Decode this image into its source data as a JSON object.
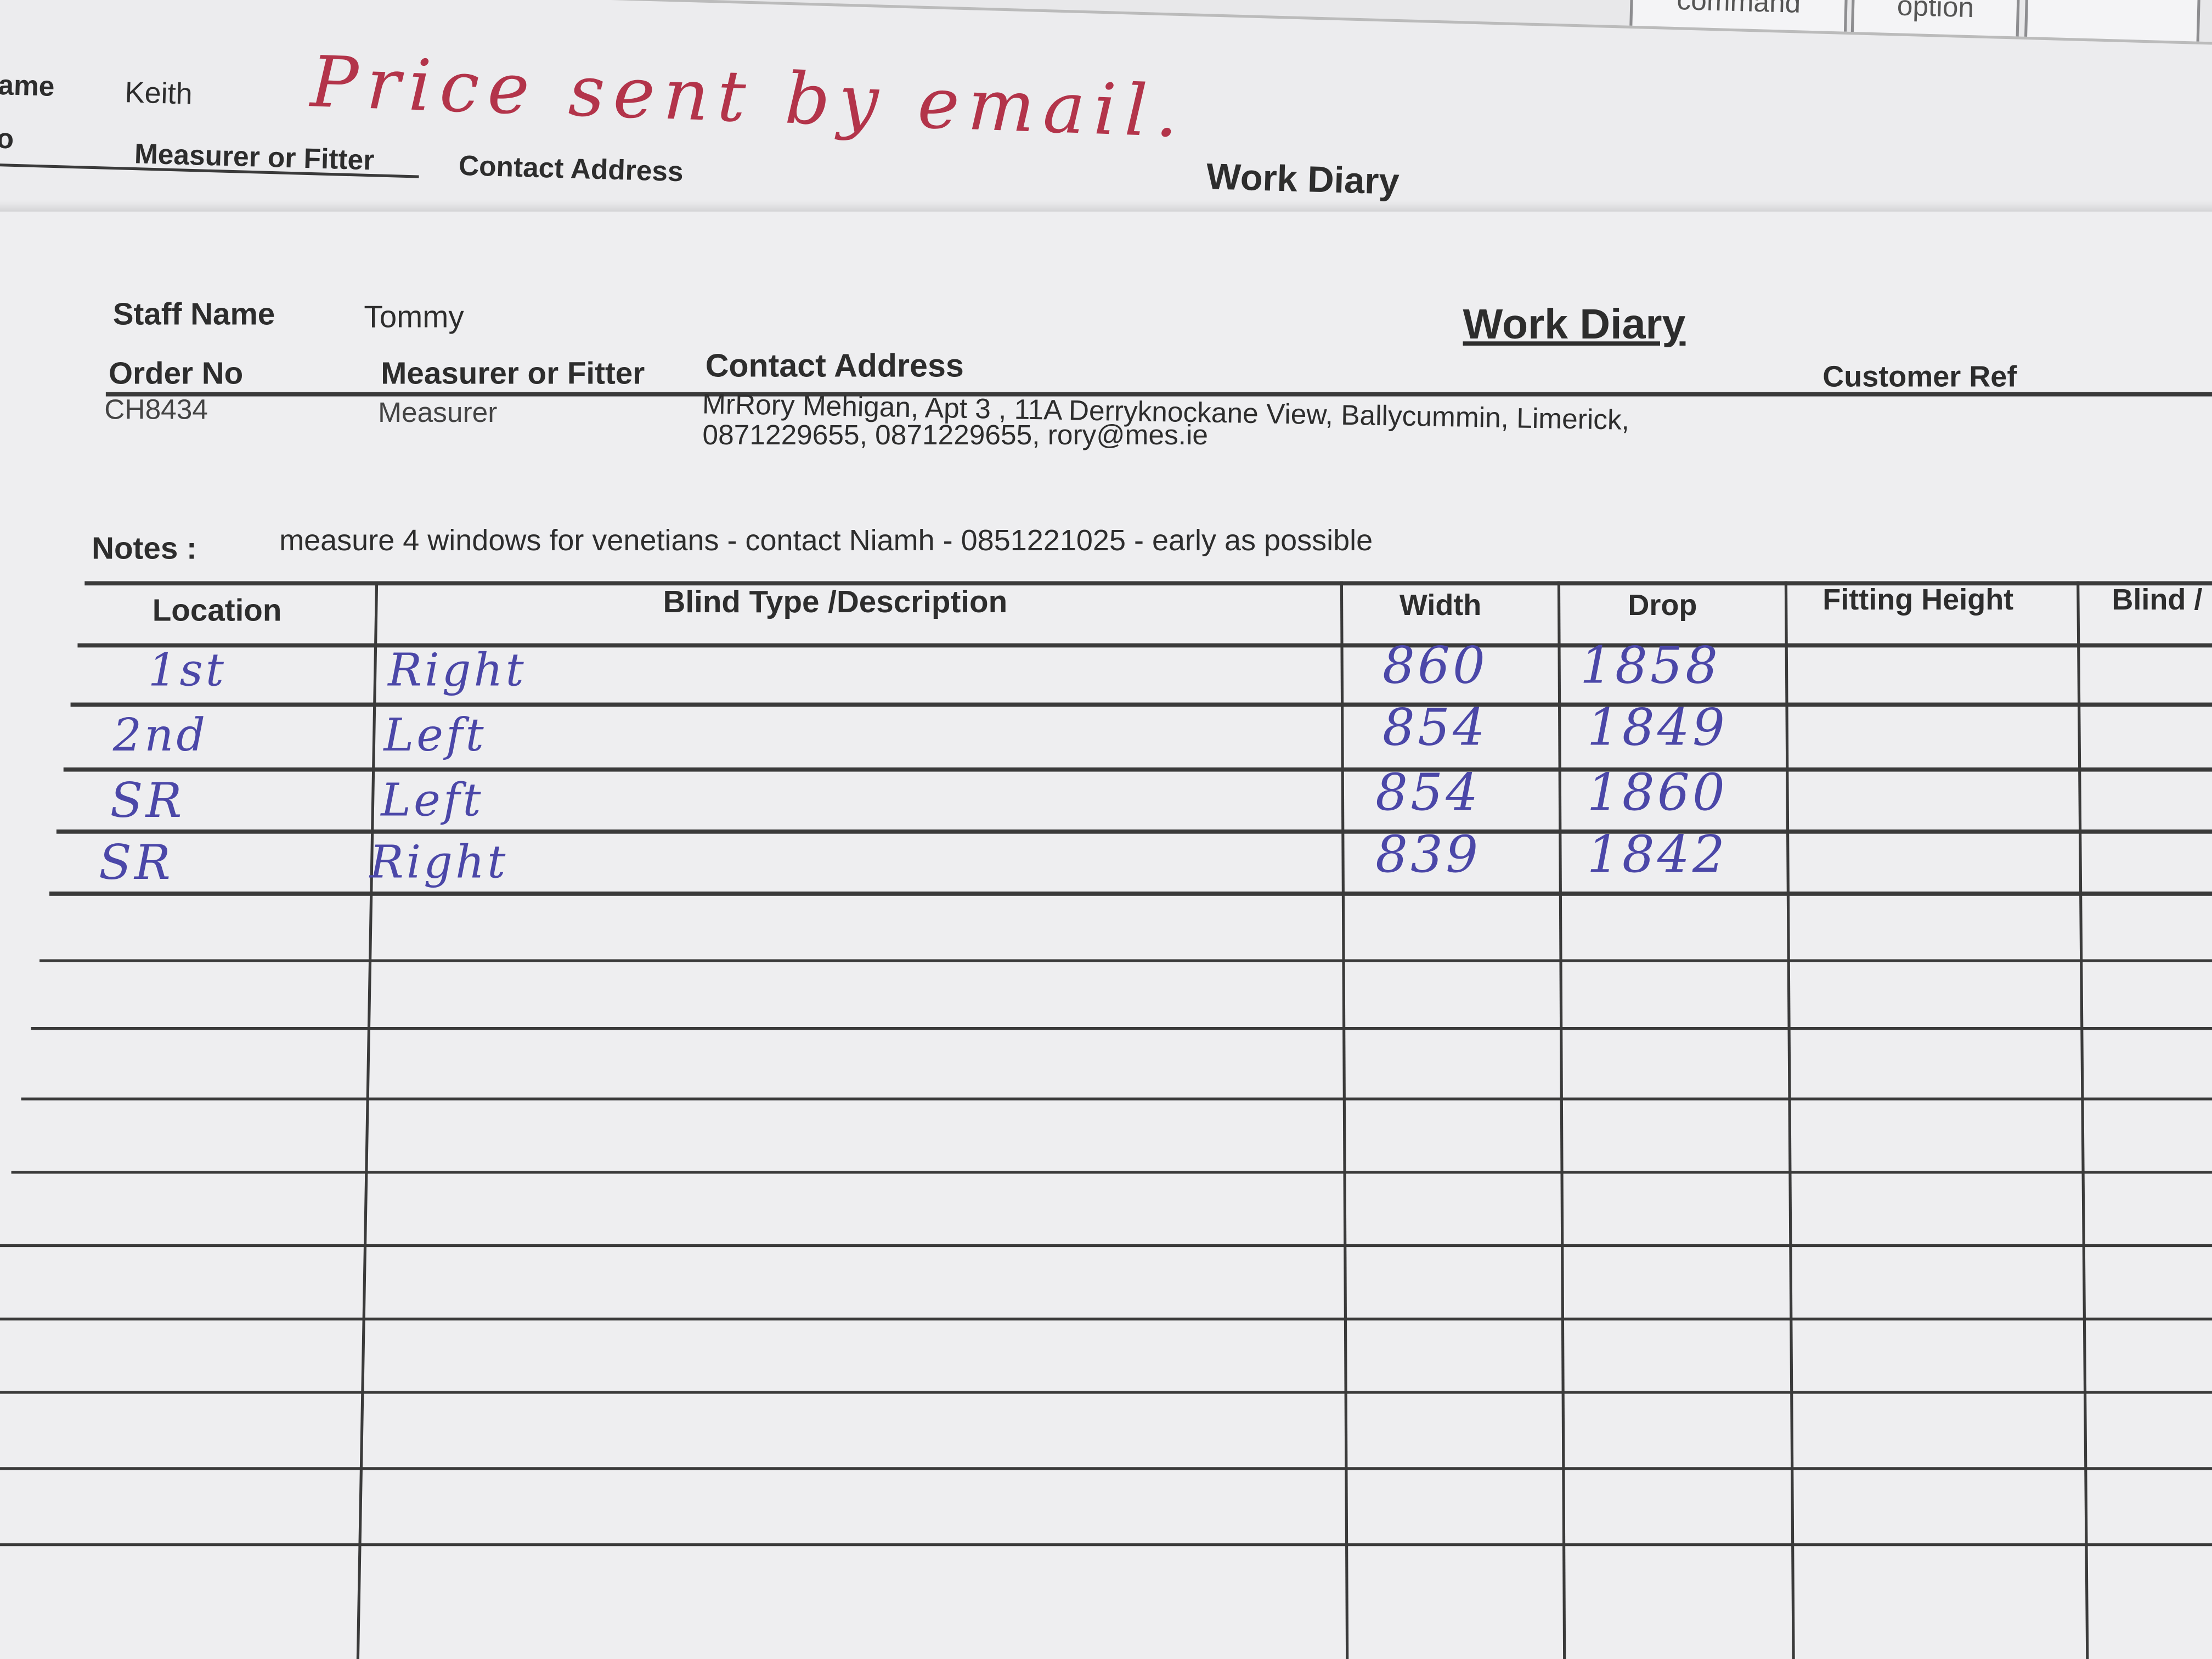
{
  "keyboard": {
    "keys": [
      "command",
      "option"
    ]
  },
  "handwritten_note": "Price sent by email.",
  "back_sheet": {
    "staff_name_label": "ame",
    "staff_name_value": "Keith",
    "order_no_label": "o",
    "measurer_label": "Measurer or Fitter",
    "contact_label": "Contact Address",
    "title": "Work Diary"
  },
  "form": {
    "title": "Work Diary",
    "staff_name_label": "Staff Name",
    "staff_name_value": "Tommy",
    "order_no_label": "Order No",
    "order_no_value": "CH8434",
    "measurer_label": "Measurer or Fitter",
    "measurer_value": "Measurer",
    "contact_label": "Contact Address",
    "contact_line1": "MrRory Mehigan, Apt 3 , 11A Derryknockane View, Ballycummin, Limerick,",
    "contact_line2": "0871229655, 0871229655, rory@mes.ie",
    "customer_ref_label": "Customer Ref",
    "notes_label": "Notes :",
    "notes_value": "measure 4 windows for venetians - contact Niamh - 0851221025 - early as possible"
  },
  "table": {
    "headers": [
      "Location",
      "Blind Type /Description",
      "Width",
      "Drop",
      "Fitting Height",
      "Blind /"
    ],
    "rows": [
      {
        "location": "1st",
        "description": "Right",
        "width": "860",
        "drop": "1858"
      },
      {
        "location": "2nd",
        "description": "Left",
        "width": "854",
        "drop": "1849"
      },
      {
        "location": "SR",
        "description": "Left",
        "width": "854",
        "drop": "1860"
      },
      {
        "location": "SR",
        "description": "Right",
        "width": "839",
        "drop": "1842"
      }
    ]
  },
  "colors": {
    "ink_blue": "#4b47a8",
    "ink_red": "#b3344a",
    "paper": "#eeeef0"
  }
}
